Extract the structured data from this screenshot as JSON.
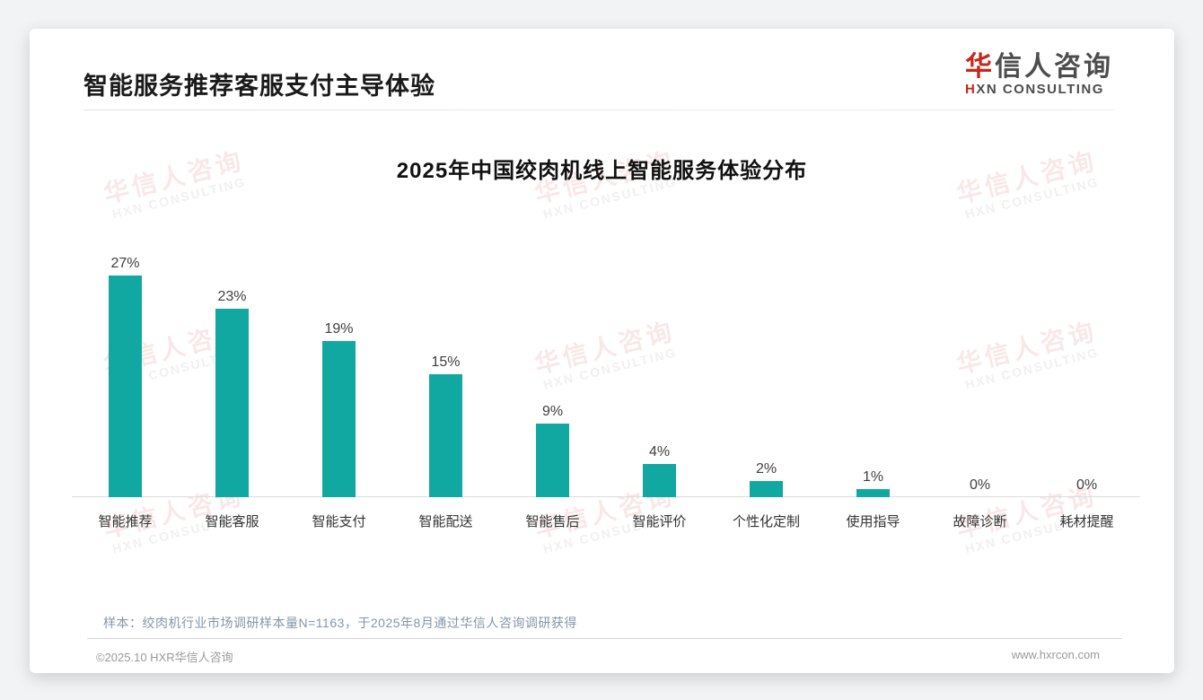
{
  "header": {
    "title": "智能服务推荐客服支付主导体验",
    "logo": {
      "cn_first": "华",
      "cn_rest": "信人咨询",
      "en_first": "H",
      "en_rest": "XN CONSULTING"
    }
  },
  "watermark": {
    "cn": "华信人咨询",
    "en": "HXN CONSULTING"
  },
  "chart_data": {
    "type": "bar",
    "title": "2025年中国绞肉机线上智能服务体验分布",
    "categories": [
      "智能推荐",
      "智能客服",
      "智能支付",
      "智能配送",
      "智能售后",
      "智能评价",
      "个性化定制",
      "使用指导",
      "故障诊断",
      "耗材提醒"
    ],
    "values": [
      27,
      23,
      19,
      15,
      9,
      4,
      2,
      1,
      0,
      0
    ],
    "value_labels": [
      "27%",
      "23%",
      "19%",
      "15%",
      "9%",
      "4%",
      "2%",
      "1%",
      "0%",
      "0%"
    ],
    "unit": "%",
    "bar_color": "#12a8a2",
    "ylim": [
      0,
      30
    ],
    "grid": false,
    "legend": null,
    "xlabel": "",
    "ylabel": ""
  },
  "footnote": "样本：绞肉机行业市场调研样本量N=1163，于2025年8月通过华信人咨询调研获得",
  "footer": {
    "left": "©2025.10 HXR华信人咨询",
    "right": "www.hxrcon.com"
  }
}
